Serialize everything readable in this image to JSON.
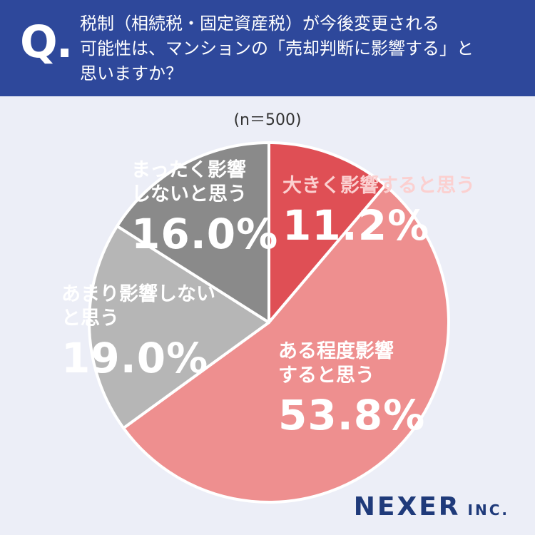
{
  "header": {
    "q": "Q.",
    "question": [
      "税制（相続税・固定資産税）が今後変更される",
      "可能性は、マンションの「売却判断に影響する」と",
      "思いますか？"
    ]
  },
  "chart_data": {
    "type": "pie",
    "subtitle": "(n＝500)",
    "categories": [
      "大きく影響すると思う",
      "ある程度影響すると思う",
      "あまり影響しないと思う",
      "まったく影響しないと思う"
    ],
    "values": [
      11.2,
      53.8,
      19.0,
      16.0
    ],
    "value_labels": [
      "11.2%",
      "53.8%",
      "19.0%",
      "16.0%"
    ],
    "colors": [
      "#df4f55",
      "#ee8f8f",
      "#b6b6b6",
      "#8a8a8a"
    ]
  },
  "logo": {
    "name": "NEXER",
    "suffix": "INC."
  }
}
